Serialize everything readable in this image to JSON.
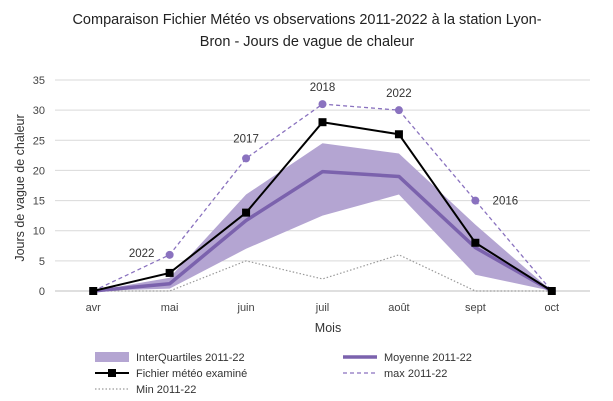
{
  "chart_data": {
    "type": "line",
    "title_lines": [
      "Comparaison Fichier Météo vs observations 2011-2022 à la station Lyon-",
      "Bron - Jours de vague de chaleur"
    ],
    "xlabel": "Mois",
    "ylabel": "Jours de vague de chaleur",
    "ylim": [
      0,
      35
    ],
    "yticks": [
      0,
      5,
      10,
      15,
      20,
      25,
      30,
      35
    ],
    "categories": [
      "avr",
      "mai",
      "juin",
      "juil",
      "août",
      "sept",
      "oct"
    ],
    "band": {
      "name": "InterQuartiles 2011-22",
      "color": "#b4a5d2",
      "lower": [
        0,
        0.4,
        7,
        12.5,
        16,
        2.7,
        0
      ],
      "upper": [
        0,
        2.2,
        16,
        24.5,
        22.8,
        11,
        0
      ]
    },
    "series": [
      {
        "key": "moyenne",
        "name": "Moyenne 2011-22",
        "color": "#7b62ad",
        "values": [
          0,
          1.2,
          11.7,
          19.8,
          19.0,
          7.2,
          0
        ]
      },
      {
        "key": "fichier",
        "name": "Fichier météo examiné",
        "color": "#000000",
        "values": [
          0,
          3,
          13,
          28,
          26,
          8,
          0
        ]
      },
      {
        "key": "max",
        "name": "max 2011-22",
        "color": "#8a72bf",
        "values": [
          0,
          6,
          22,
          31,
          30,
          15,
          0
        ]
      },
      {
        "key": "min",
        "name": "Min 2011-22",
        "color": "#9a9a9a",
        "values": [
          0,
          0,
          5,
          2,
          6,
          0,
          0
        ]
      }
    ],
    "annotations": [
      {
        "label": "2022",
        "category": "mai"
      },
      {
        "label": "2017",
        "category": "juin"
      },
      {
        "label": "2018",
        "category": "juil"
      },
      {
        "label": "2022",
        "category": "août"
      },
      {
        "label": "2016",
        "category": "sept"
      }
    ],
    "grid": true,
    "legend_position": "bottom"
  }
}
